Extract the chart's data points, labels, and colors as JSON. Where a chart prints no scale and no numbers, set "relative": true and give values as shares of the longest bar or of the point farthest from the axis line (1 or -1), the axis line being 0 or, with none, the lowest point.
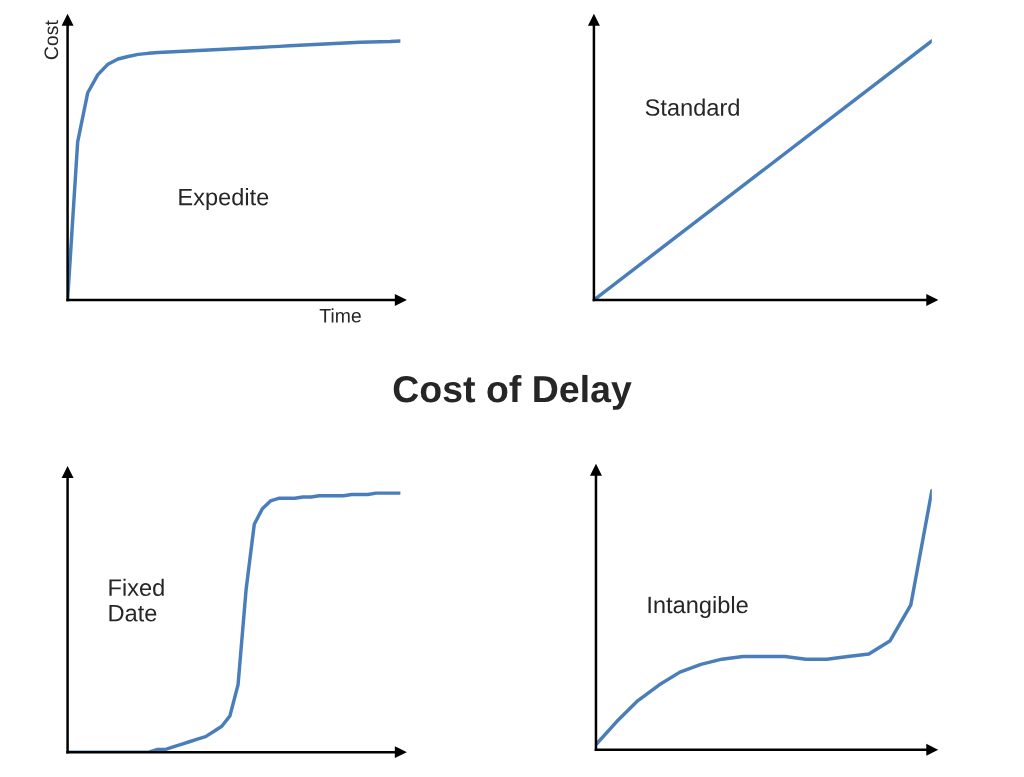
{
  "chart_data": [
    {
      "type": "line",
      "relative": true,
      "title": "Cost of Delay",
      "xlabel": "Time",
      "ylabel": "Cost",
      "annotations": [
        "Expedite"
      ],
      "color": "#4a7ebb",
      "categories": [
        null,
        null,
        null,
        null,
        null,
        null,
        null,
        null,
        null,
        null,
        null,
        null,
        null,
        null,
        null,
        null,
        null,
        null,
        null,
        null,
        null,
        null,
        null,
        null,
        null,
        null,
        null,
        null,
        null,
        null,
        null,
        null,
        null,
        null
      ],
      "values": [
        0,
        0.61,
        0.8,
        0.87,
        0.91,
        0.93,
        0.94,
        0.948,
        0.952,
        0.955,
        0.957,
        0.959,
        0.961,
        0.963,
        0.965,
        0.967,
        0.969,
        0.971,
        0.973,
        0.975,
        0.977,
        0.979,
        0.981,
        0.983,
        0.985,
        0.987,
        0.989,
        0.991,
        0.993,
        0.995,
        0.996,
        0.997,
        0.998,
        1.0
      ]
    },
    {
      "type": "line",
      "relative": true,
      "annotations": [
        "Standard"
      ],
      "color": "#4a7ebb",
      "categories": [
        null,
        null,
        null,
        null,
        null
      ],
      "values": [
        0,
        0.25,
        0.5,
        0.75,
        1.0
      ]
    },
    {
      "type": "line",
      "relative": true,
      "annotations": [
        "Fixed\nDate"
      ],
      "color": "#4a7ebb",
      "categories": [
        null,
        null,
        null,
        null,
        null,
        null,
        null,
        null,
        null,
        null,
        null,
        null,
        null,
        null,
        null,
        null,
        null,
        null,
        null,
        null,
        null,
        null,
        null,
        null,
        null,
        null,
        null,
        null,
        null,
        null,
        null,
        null,
        null,
        null,
        null,
        null,
        null,
        null,
        null,
        null,
        null,
        null
      ],
      "values": [
        0,
        0,
        0,
        0,
        0,
        0,
        0,
        0,
        0,
        0,
        0,
        0.01,
        0.01,
        0.02,
        0.03,
        0.04,
        0.05,
        0.06,
        0.08,
        0.1,
        0.14,
        0.26,
        0.63,
        0.88,
        0.94,
        0.97,
        0.98,
        0.98,
        0.98,
        0.985,
        0.985,
        0.99,
        0.99,
        0.99,
        0.99,
        0.995,
        0.995,
        0.995,
        1.0,
        1.0,
        1.0,
        1.0
      ]
    },
    {
      "type": "line",
      "relative": true,
      "annotations": [
        "Intangible"
      ],
      "color": "#4a7ebb",
      "categories": [
        null,
        null,
        null,
        null,
        null,
        null,
        null,
        null,
        null,
        null,
        null,
        null,
        null,
        null,
        null,
        null,
        null
      ],
      "values": [
        0.02,
        0.11,
        0.19,
        0.25,
        0.3,
        0.33,
        0.35,
        0.36,
        0.36,
        0.36,
        0.35,
        0.35,
        0.36,
        0.37,
        0.42,
        0.56,
        1.0
      ]
    }
  ]
}
